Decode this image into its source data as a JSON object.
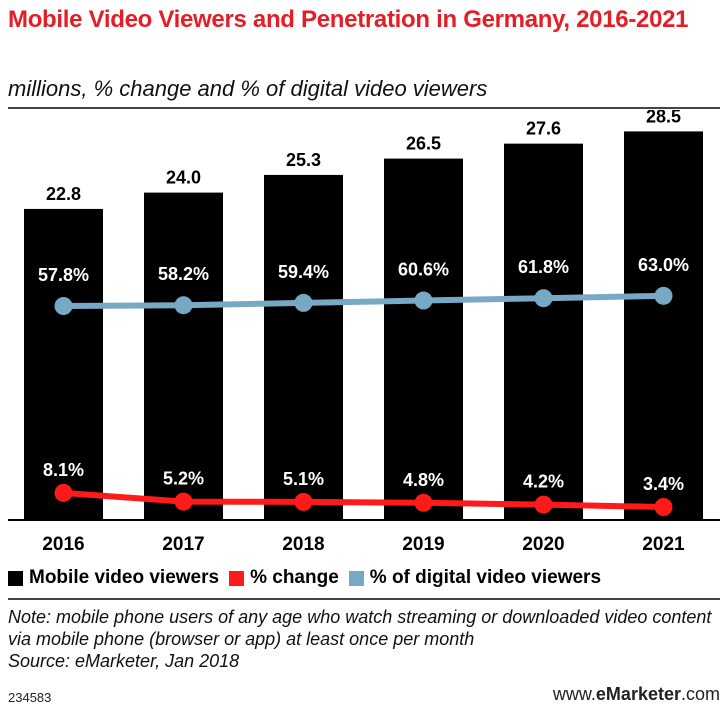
{
  "header": {
    "title": "Mobile Video Viewers and Penetration in Germany, 2016-2021",
    "subtitle": "millions, % change and % of digital video viewers"
  },
  "colors": {
    "title": "#e41e26",
    "bars": "#000000",
    "change": "#ff1a1a",
    "penetration": "#78a9c4"
  },
  "legend": {
    "items": [
      {
        "label": "Mobile video viewers",
        "color": "#000000"
      },
      {
        "label": "% change",
        "color": "#ff1a1a"
      },
      {
        "label": "% of digital video viewers",
        "color": "#78a9c4"
      }
    ]
  },
  "footer": {
    "note": "Note: mobile phone users of any age who watch streaming or downloaded video content via mobile phone (browser or app) at least once per month",
    "source": "Source: eMarketer, Jan 2018",
    "id": "234583",
    "brand_prefix": "www.",
    "brand_bold": "eMarketer",
    "brand_suffix": ".com"
  },
  "chart_data": {
    "type": "bar",
    "categories": [
      "2016",
      "2017",
      "2018",
      "2019",
      "2020",
      "2021"
    ],
    "series": [
      {
        "name": "Mobile video viewers",
        "kind": "bar",
        "values": [
          22.8,
          24.0,
          25.3,
          26.5,
          27.6,
          28.5
        ],
        "labels": [
          "22.8",
          "24.0",
          "25.3",
          "26.5",
          "27.6",
          "28.5"
        ]
      },
      {
        "name": "% change",
        "kind": "line",
        "values": [
          8.1,
          5.2,
          5.1,
          4.8,
          4.2,
          3.4
        ],
        "labels": [
          "8.1%",
          "5.2%",
          "5.1%",
          "4.8%",
          "4.2%",
          "3.4%"
        ]
      },
      {
        "name": "% of digital video viewers",
        "kind": "line",
        "values": [
          57.8,
          58.2,
          59.4,
          60.6,
          61.8,
          63.0
        ],
        "labels": [
          "57.8%",
          "58.2%",
          "59.4%",
          "60.6%",
          "61.8%",
          "63.0%"
        ]
      }
    ],
    "legend_position": "bottom",
    "grid": false
  }
}
